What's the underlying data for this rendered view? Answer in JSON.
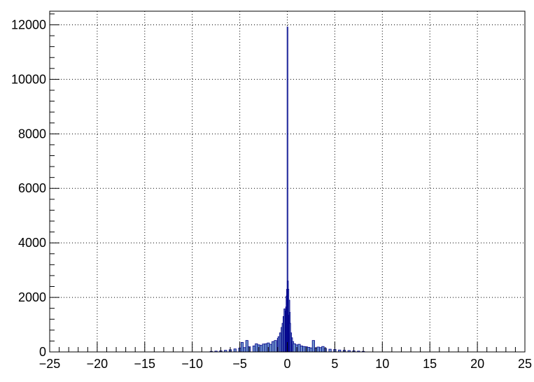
{
  "chart_data": {
    "type": "bar",
    "title": "",
    "xlabel": "",
    "ylabel": "",
    "xlim": [
      -25,
      25
    ],
    "ylim": [
      0,
      12500
    ],
    "grid": true,
    "x_ticks": [
      -25,
      -20,
      -15,
      -10,
      -5,
      0,
      5,
      10,
      15,
      20,
      25
    ],
    "x_tick_labels": [
      "−25",
      "−20",
      "−15",
      "−10",
      "−5",
      "0",
      "5",
      "10",
      "15",
      "20",
      "25"
    ],
    "y_ticks": [
      0,
      2000,
      4000,
      6000,
      8000,
      10000,
      12000
    ],
    "y_tick_labels": [
      "0",
      "2000",
      "4000",
      "6000",
      "8000",
      "10000",
      "12000"
    ],
    "series": [
      {
        "bins": [
          [
            -8.0,
            20
          ],
          [
            -7.5,
            30
          ],
          [
            -7.0,
            40
          ],
          [
            -6.5,
            60
          ],
          [
            -6.0,
            80
          ],
          [
            -5.5,
            110
          ],
          [
            -5.0,
            140
          ],
          [
            -4.75,
            350
          ],
          [
            -4.5,
            160
          ],
          [
            -4.25,
            420
          ],
          [
            -4.0,
            190
          ],
          [
            -3.5,
            220
          ],
          [
            -3.25,
            300
          ],
          [
            -3.0,
            260
          ],
          [
            -2.75,
            240
          ],
          [
            -2.5,
            290
          ],
          [
            -2.25,
            300
          ],
          [
            -2.0,
            330
          ],
          [
            -1.75,
            280
          ],
          [
            -1.5,
            380
          ],
          [
            -1.25,
            420
          ],
          [
            -1.0,
            500
          ],
          [
            -0.9,
            560
          ],
          [
            -0.75,
            700
          ],
          [
            -0.6,
            900
          ],
          [
            -0.5,
            1050
          ],
          [
            -0.4,
            1300
          ],
          [
            -0.3,
            1580
          ],
          [
            -0.2,
            1500
          ],
          [
            -0.15,
            1650
          ],
          [
            -0.1,
            2050
          ],
          [
            -0.05,
            2300
          ],
          [
            0.0,
            11920
          ],
          [
            0.05,
            2600
          ],
          [
            0.1,
            2300
          ],
          [
            0.15,
            1350
          ],
          [
            0.2,
            1900
          ],
          [
            0.25,
            1450
          ],
          [
            0.3,
            1050
          ],
          [
            0.4,
            700
          ],
          [
            0.5,
            520
          ],
          [
            0.6,
            380
          ],
          [
            0.75,
            300
          ],
          [
            1.0,
            260
          ],
          [
            1.25,
            280
          ],
          [
            1.5,
            220
          ],
          [
            1.75,
            200
          ],
          [
            2.0,
            190
          ],
          [
            2.25,
            170
          ],
          [
            2.5,
            150
          ],
          [
            2.75,
            420
          ],
          [
            3.0,
            140
          ],
          [
            3.25,
            180
          ],
          [
            3.5,
            160
          ],
          [
            3.75,
            200
          ],
          [
            4.0,
            130
          ],
          [
            4.5,
            100
          ],
          [
            5.0,
            90
          ],
          [
            5.5,
            70
          ],
          [
            6.0,
            60
          ],
          [
            6.5,
            50
          ],
          [
            7.0,
            40
          ],
          [
            7.5,
            30
          ],
          [
            8.0,
            20
          ]
        ],
        "fill_color": "#6f93c9",
        "line_color": "#00008b"
      }
    ]
  }
}
